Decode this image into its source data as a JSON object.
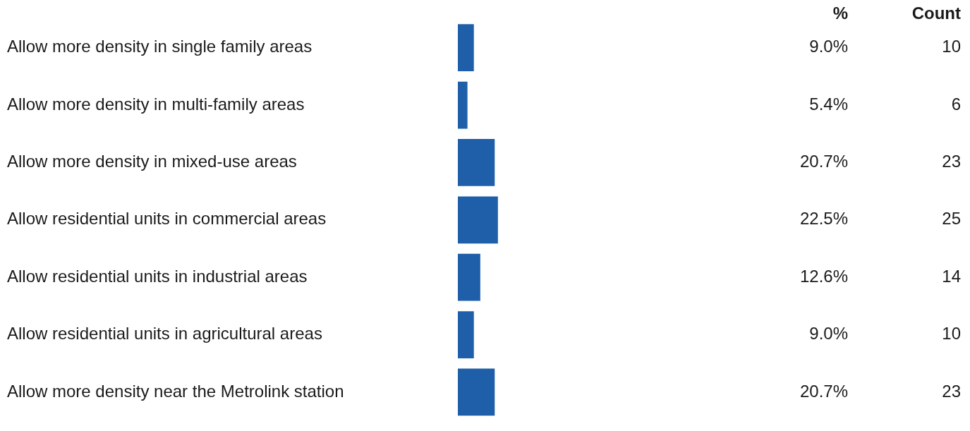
{
  "chart_data": {
    "type": "bar",
    "orientation": "horizontal",
    "categories": [
      "Allow more density in single family areas",
      "Allow more density in multi-family areas",
      "Allow more density in mixed-use areas",
      "Allow residential units in commercial areas",
      "Allow residential units in industrial areas",
      "Allow residential units in agricultural areas",
      "Allow more density near the Metrolink station"
    ],
    "values": [
      9.0,
      5.4,
      20.7,
      22.5,
      12.6,
      9.0,
      20.7
    ],
    "value_labels": [
      "9.0%",
      "5.4%",
      "20.7%",
      "22.5%",
      "12.6%",
      "9.0%",
      "20.7%"
    ],
    "color": "#1f5ea8",
    "legend": false,
    "tick_labels": "y",
    "annotations": [
      "%",
      "Count",
      "10",
      "6",
      "23",
      "25",
      "14",
      "10",
      "23"
    ]
  }
}
